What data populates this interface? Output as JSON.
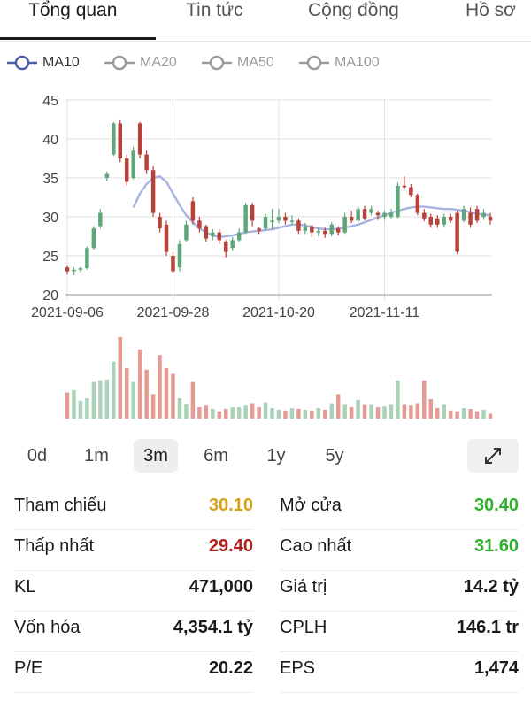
{
  "tabs": [
    {
      "label": "Tổng quan",
      "active": true
    },
    {
      "label": "Tin tức",
      "active": false
    },
    {
      "label": "Cộng đồng",
      "active": false
    },
    {
      "label": "Hồ sơ",
      "active": false
    }
  ],
  "ma_legend": [
    {
      "label": "MA10",
      "color": "#4a5fa8",
      "active": true
    },
    {
      "label": "MA20",
      "color": "#9a9a9a",
      "active": false
    },
    {
      "label": "MA50",
      "color": "#9a9a9a",
      "active": false
    },
    {
      "label": "MA100",
      "color": "#9a9a9a",
      "active": false
    }
  ],
  "ranges": [
    {
      "label": "0d",
      "active": false
    },
    {
      "label": "1m",
      "active": false
    },
    {
      "label": "3m",
      "active": true
    },
    {
      "label": "6m",
      "active": false
    },
    {
      "label": "1y",
      "active": false
    },
    {
      "label": "5y",
      "active": false
    }
  ],
  "expand_icon": "expand-diagonal-icon",
  "chart_data": {
    "type": "candlestick",
    "ylim": [
      20,
      45
    ],
    "y_ticks": [
      20,
      25,
      30,
      35,
      40,
      45
    ],
    "x_ticks": [
      {
        "label": "2021-09-06",
        "index": 0
      },
      {
        "label": "2021-09-28",
        "index": 16
      },
      {
        "label": "2021-10-20",
        "index": 32
      },
      {
        "label": "2021-11-11",
        "index": 48
      }
    ],
    "colors": {
      "up": "#5fa77a",
      "down": "#b8423a",
      "ma": "#a9b3e0",
      "vol_up": "#a9d2b8",
      "vol_down": "#e59a94",
      "grid": "#e0e0e0"
    },
    "candles": [
      [
        23.5,
        23.0,
        23.8,
        22.6
      ],
      [
        23.0,
        23.2,
        23.5,
        22.5
      ],
      [
        23.2,
        23.4,
        23.6,
        22.9
      ],
      [
        23.4,
        26.0,
        26.2,
        23.2
      ],
      [
        26.0,
        28.5,
        28.8,
        25.8
      ],
      [
        28.8,
        30.5,
        31.0,
        28.5
      ],
      [
        35.0,
        35.5,
        35.8,
        34.6
      ],
      [
        38.0,
        42.0,
        42.2,
        37.8
      ],
      [
        42.0,
        37.5,
        42.4,
        37.0
      ],
      [
        37.5,
        34.5,
        38.0,
        34.0
      ],
      [
        35.0,
        38.5,
        39.0,
        34.8
      ],
      [
        42.0,
        38.0,
        42.2,
        37.5
      ],
      [
        38.0,
        36.0,
        38.5,
        35.5
      ],
      [
        36.0,
        30.5,
        36.5,
        30.0
      ],
      [
        30.0,
        28.5,
        30.5,
        28.0
      ],
      [
        29.0,
        25.5,
        29.5,
        25.0
      ],
      [
        25.0,
        23.0,
        25.5,
        22.8
      ],
      [
        23.5,
        26.5,
        27.0,
        23.0
      ],
      [
        27.0,
        29.0,
        29.5,
        26.8
      ],
      [
        32.0,
        29.5,
        32.5,
        29.0
      ],
      [
        29.5,
        28.5,
        30.0,
        28.0
      ],
      [
        28.8,
        27.2,
        29.0,
        26.8
      ],
      [
        27.5,
        28.0,
        28.4,
        27.0
      ],
      [
        28.0,
        27.0,
        28.4,
        26.5
      ],
      [
        26.8,
        25.5,
        27.0,
        24.8
      ],
      [
        26.0,
        27.0,
        27.4,
        25.6
      ],
      [
        27.0,
        28.0,
        28.5,
        26.8
      ],
      [
        28.0,
        31.5,
        31.8,
        27.8
      ],
      [
        31.5,
        29.5,
        31.8,
        28.8
      ],
      [
        28.5,
        28.2,
        28.7,
        27.8
      ],
      [
        28.5,
        30.0,
        30.4,
        28.2
      ],
      [
        29.5,
        29.5,
        31.0,
        28.5
      ],
      [
        29.5,
        30.0,
        31.0,
        29.2
      ],
      [
        30.0,
        29.5,
        30.5,
        29.0
      ],
      [
        29.5,
        29.5,
        30.2,
        29.0
      ],
      [
        29.5,
        28.2,
        29.8,
        27.8
      ],
      [
        28.2,
        28.8,
        29.2,
        27.8
      ],
      [
        28.8,
        28.0,
        29.0,
        27.4
      ],
      [
        28.0,
        28.2,
        28.6,
        27.5
      ],
      [
        28.2,
        27.8,
        28.6,
        27.3
      ],
      [
        27.8,
        29.0,
        29.3,
        27.5
      ],
      [
        28.5,
        28.0,
        28.8,
        27.6
      ],
      [
        28.0,
        30.0,
        30.5,
        27.8
      ],
      [
        30.0,
        29.5,
        30.8,
        29.2
      ],
      [
        29.5,
        31.0,
        31.4,
        29.2
      ],
      [
        31.0,
        29.8,
        31.4,
        29.5
      ],
      [
        30.5,
        31.0,
        31.4,
        30.2
      ],
      [
        30.5,
        30.2,
        30.8,
        29.6
      ],
      [
        30.0,
        30.5,
        30.8,
        29.6
      ],
      [
        30.0,
        30.5,
        31.0,
        29.7
      ],
      [
        30.0,
        34.0,
        34.4,
        29.8
      ],
      [
        34.0,
        33.8,
        35.2,
        33.5
      ],
      [
        33.8,
        32.8,
        34.2,
        32.5
      ],
      [
        32.8,
        30.5,
        33.0,
        30.2
      ],
      [
        30.5,
        29.8,
        31.0,
        29.4
      ],
      [
        30.0,
        29.0,
        30.4,
        28.6
      ],
      [
        29.8,
        29.0,
        30.2,
        28.6
      ],
      [
        29.0,
        30.0,
        30.4,
        28.7
      ],
      [
        30.0,
        29.5,
        30.4,
        29.2
      ],
      [
        30.5,
        25.5,
        30.8,
        25.2
      ],
      [
        29.5,
        31.0,
        31.4,
        29.3
      ],
      [
        30.5,
        29.0,
        31.2,
        28.6
      ],
      [
        31.0,
        29.5,
        31.4,
        29.2
      ],
      [
        30.0,
        30.5,
        31.0,
        29.6
      ],
      [
        30.0,
        29.5,
        30.5,
        29.0
      ]
    ],
    "ma10": [
      null,
      null,
      null,
      null,
      null,
      null,
      null,
      null,
      null,
      null,
      31.2,
      33.0,
      34.2,
      35.0,
      35.2,
      34.5,
      33.0,
      31.5,
      30.2,
      29.3,
      28.5,
      28.0,
      27.6,
      27.4,
      27.5,
      27.6,
      27.8,
      28.0,
      28.1,
      28.2,
      28.3,
      28.4,
      28.6,
      28.8,
      29.0,
      29.0,
      28.9,
      28.7,
      28.5,
      28.4,
      28.4,
      28.5,
      28.6,
      28.8,
      29.0,
      29.3,
      29.6,
      29.9,
      30.2,
      30.5,
      30.8,
      31.0,
      31.2,
      31.3,
      31.3,
      31.2,
      31.1,
      31.0,
      31.0,
      30.9,
      30.8,
      30.6,
      30.4,
      30.3,
      30.2
    ],
    "volumes": [
      0.32,
      0.35,
      0.22,
      0.25,
      0.45,
      0.47,
      0.48,
      0.7,
      1.0,
      0.62,
      0.45,
      0.85,
      0.6,
      0.3,
      0.78,
      0.62,
      0.55,
      0.25,
      0.18,
      0.45,
      0.14,
      0.16,
      0.12,
      0.09,
      0.12,
      0.14,
      0.14,
      0.16,
      0.19,
      0.14,
      0.2,
      0.13,
      0.11,
      0.1,
      0.13,
      0.12,
      0.11,
      0.1,
      0.13,
      0.11,
      0.19,
      0.3,
      0.17,
      0.14,
      0.23,
      0.17,
      0.17,
      0.14,
      0.15,
      0.17,
      0.47,
      0.17,
      0.16,
      0.19,
      0.47,
      0.24,
      0.13,
      0.17,
      0.1,
      0.09,
      0.13,
      0.12,
      0.09,
      0.11,
      0.06
    ],
    "volumes_note_unit": ""
  },
  "stats": [
    {
      "label": "Tham chiếu",
      "value": "30.10",
      "color": "#d4a21a"
    },
    {
      "label": "Mở cửa",
      "value": "30.40",
      "color": "#2fae2f"
    },
    {
      "label": "Thấp nhất",
      "value": "29.40",
      "color": "#b01e1e"
    },
    {
      "label": "Cao nhất",
      "value": "31.60",
      "color": "#2fae2f"
    },
    {
      "label": "KL",
      "value": "471,000",
      "color": "#1a1a1a"
    },
    {
      "label": "Giá trị",
      "value": "14.2 tỷ",
      "color": "#1a1a1a"
    },
    {
      "label": "Vốn hóa",
      "value": "4,354.1 tỷ",
      "color": "#1a1a1a"
    },
    {
      "label": "CPLH",
      "value": "146.1 tr",
      "color": "#1a1a1a"
    },
    {
      "label": "P/E",
      "value": "20.22",
      "color": "#1a1a1a"
    },
    {
      "label": "EPS",
      "value": "1,474",
      "color": "#1a1a1a"
    }
  ]
}
